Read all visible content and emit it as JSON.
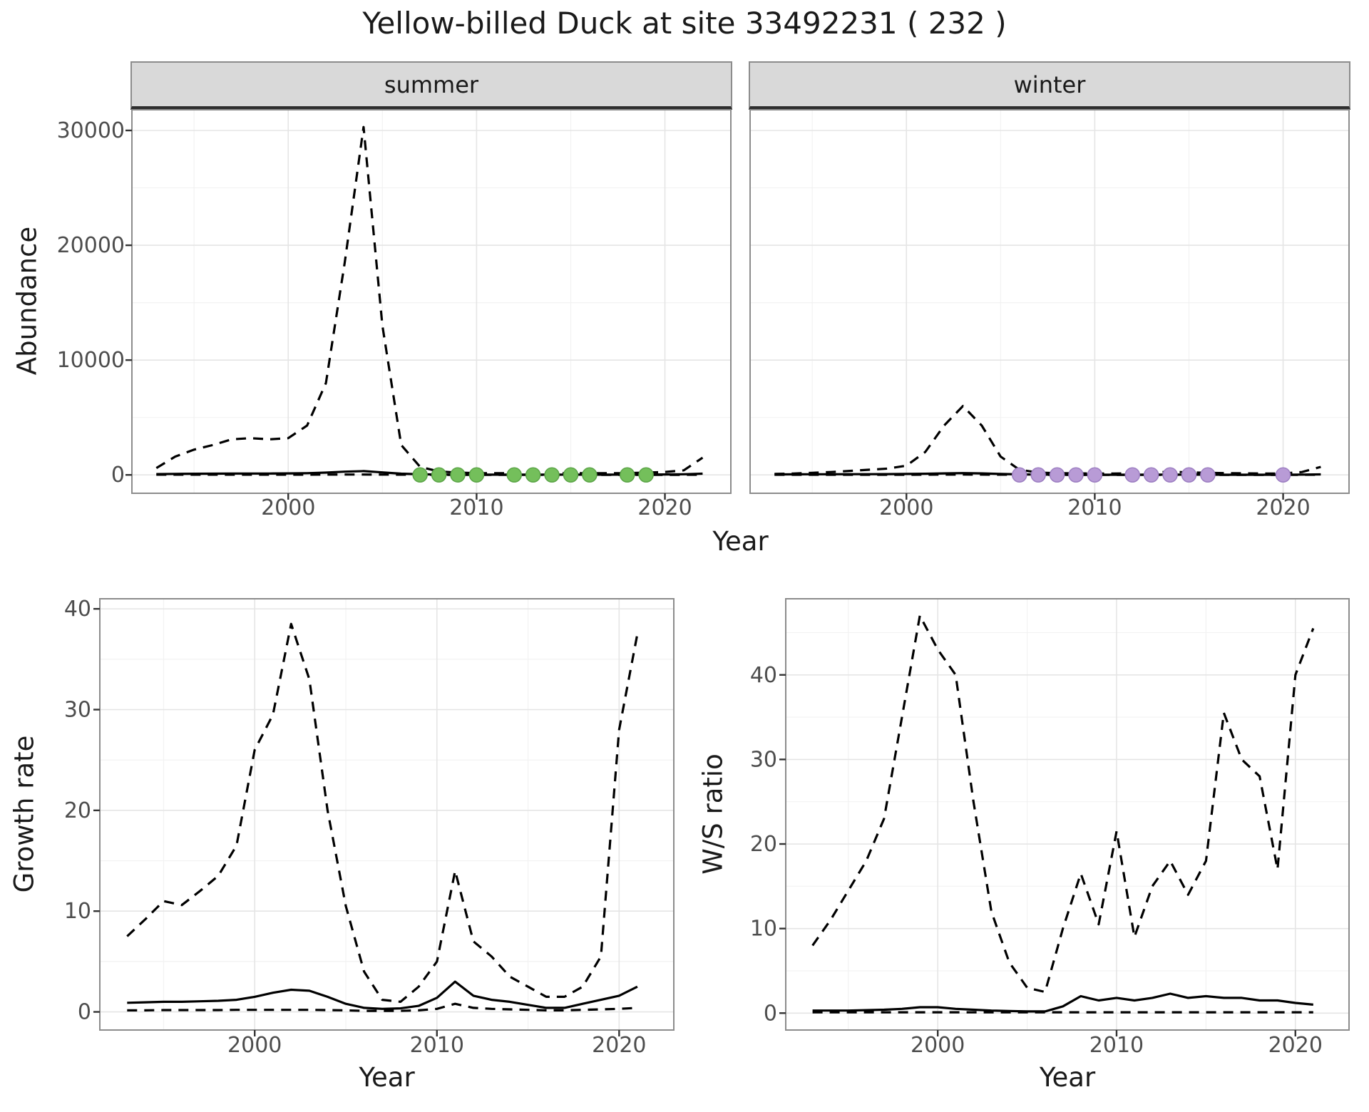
{
  "title": "Yellow-billed Duck at site 33492231 ( 232 )",
  "axis_labels": {
    "abundance": "Abundance",
    "growth_rate": "Growth rate",
    "ws_ratio": "W/S ratio",
    "year": "Year"
  },
  "style": {
    "grid_major": "#e5e5e5",
    "grid_minor": "#f2f2f2",
    "panel_border": "#8c8c8c",
    "strip_bg": "#d9d9d9",
    "line_color": "#000000",
    "tick_text": "#4d4d4d"
  },
  "chart_data": [
    {
      "id": "summer",
      "type": "line",
      "facet_label": "summer",
      "xlabel": "Year",
      "ylabel": "Abundance",
      "xlim": [
        1991.7,
        2023.5
      ],
      "ylim": [
        -1600,
        31800
      ],
      "xticks": [
        2000,
        2010,
        2020
      ],
      "yticks": [
        0,
        10000,
        20000,
        30000
      ],
      "x": [
        1993,
        1994,
        1995,
        1996,
        1997,
        1998,
        1999,
        2000,
        2001,
        2002,
        2003,
        2004,
        2005,
        2006,
        2007,
        2008,
        2009,
        2010,
        2011,
        2012,
        2013,
        2014,
        2015,
        2016,
        2017,
        2018,
        2019,
        2020,
        2021,
        2022
      ],
      "series": [
        {
          "name": "upper-ci",
          "style": "dashed",
          "values": [
            600,
            1600,
            2200,
            2600,
            3100,
            3200,
            3100,
            3200,
            4300,
            8000,
            18500,
            30300,
            13000,
            2600,
            700,
            300,
            200,
            150,
            150,
            150,
            150,
            150,
            150,
            150,
            150,
            150,
            200,
            250,
            400,
            1500
          ]
        },
        {
          "name": "lower-ci",
          "style": "dashed",
          "values": [
            20,
            20,
            20,
            20,
            20,
            20,
            20,
            20,
            20,
            25,
            30,
            35,
            25,
            20,
            10,
            10,
            10,
            10,
            10,
            10,
            10,
            10,
            10,
            10,
            10,
            10,
            10,
            10,
            10,
            15
          ]
        },
        {
          "name": "estimate",
          "style": "solid",
          "values": [
            70,
            90,
            100,
            110,
            120,
            120,
            120,
            130,
            150,
            200,
            280,
            330,
            220,
            110,
            50,
            30,
            25,
            20,
            20,
            20,
            20,
            20,
            20,
            20,
            20,
            25,
            30,
            40,
            60,
            110
          ]
        }
      ],
      "points": {
        "name": "zero-count-point-summer",
        "color": "#74bf5b",
        "stroke": "#5ca548",
        "x": [
          2007,
          2008,
          2009,
          2010,
          2012,
          2013,
          2014,
          2015,
          2016,
          2018,
          2019
        ],
        "y": [
          0,
          0,
          0,
          0,
          0,
          0,
          0,
          0,
          0,
          0,
          0
        ]
      }
    },
    {
      "id": "winter",
      "type": "line",
      "facet_label": "winter",
      "xlabel": "Year",
      "ylabel": "Abundance",
      "xlim": [
        1991.7,
        2023.5
      ],
      "ylim": [
        -1600,
        31800
      ],
      "xticks": [
        2000,
        2010,
        2020
      ],
      "yticks": [
        0,
        10000,
        20000,
        30000
      ],
      "x": [
        1993,
        1994,
        1995,
        1996,
        1997,
        1998,
        1999,
        2000,
        2001,
        2002,
        2003,
        2004,
        2005,
        2006,
        2007,
        2008,
        2009,
        2010,
        2011,
        2012,
        2013,
        2014,
        2015,
        2016,
        2017,
        2018,
        2019,
        2020,
        2021,
        2022
      ],
      "series": [
        {
          "name": "upper-ci",
          "style": "dashed",
          "values": [
            80,
            120,
            180,
            250,
            350,
            450,
            550,
            800,
            2000,
            4300,
            6000,
            4300,
            1600,
            450,
            200,
            150,
            130,
            120,
            120,
            130,
            200,
            280,
            220,
            180,
            150,
            130,
            120,
            120,
            250,
            700
          ]
        },
        {
          "name": "lower-ci",
          "style": "dashed",
          "values": [
            15,
            15,
            15,
            15,
            15,
            15,
            15,
            15,
            20,
            25,
            30,
            25,
            20,
            12,
            10,
            10,
            10,
            10,
            10,
            10,
            10,
            10,
            10,
            10,
            10,
            10,
            10,
            10,
            10,
            12
          ]
        },
        {
          "name": "estimate",
          "style": "solid",
          "values": [
            40,
            50,
            55,
            60,
            65,
            65,
            70,
            80,
            100,
            130,
            160,
            130,
            85,
            45,
            25,
            18,
            15,
            15,
            15,
            15,
            18,
            20,
            20,
            18,
            15,
            15,
            15,
            15,
            25,
            45
          ]
        }
      ],
      "points": {
        "name": "zero-count-point-winter",
        "color": "#b89bd6",
        "stroke": "#9d7fc2",
        "x": [
          2006,
          2007,
          2008,
          2009,
          2010,
          2012,
          2013,
          2014,
          2015,
          2016,
          2020
        ],
        "y": [
          0,
          0,
          0,
          0,
          0,
          0,
          0,
          0,
          0,
          0,
          0
        ]
      }
    },
    {
      "id": "growth",
      "type": "line",
      "facet_label": "",
      "xlabel": "Year",
      "ylabel": "Growth rate",
      "xlim": [
        1991.5,
        2023
      ],
      "ylim": [
        -1.8,
        41
      ],
      "xticks": [
        2000,
        2010,
        2020
      ],
      "yticks": [
        0,
        10,
        20,
        30,
        40
      ],
      "x": [
        1993,
        1994,
        1995,
        1996,
        1997,
        1998,
        1999,
        2000,
        2001,
        2002,
        2003,
        2004,
        2005,
        2006,
        2007,
        2008,
        2009,
        2010,
        2011,
        2012,
        2013,
        2014,
        2015,
        2016,
        2017,
        2018,
        2019,
        2020,
        2021
      ],
      "series": [
        {
          "name": "upper-ci",
          "style": "dashed",
          "values": [
            7.5,
            9.2,
            11.0,
            10.6,
            12.0,
            13.5,
            16.5,
            26.0,
            29.5,
            38.5,
            33.0,
            20.0,
            10.5,
            4.0,
            1.2,
            1.0,
            2.5,
            5.0,
            14.0,
            7.0,
            5.5,
            3.5,
            2.5,
            1.5,
            1.5,
            2.5,
            5.5,
            28.0,
            37.5
          ]
        },
        {
          "name": "lower-ci",
          "style": "dashed",
          "values": [
            0.15,
            0.15,
            0.18,
            0.18,
            0.18,
            0.18,
            0.2,
            0.2,
            0.2,
            0.2,
            0.2,
            0.18,
            0.15,
            0.1,
            0.1,
            0.1,
            0.15,
            0.3,
            0.8,
            0.4,
            0.3,
            0.25,
            0.2,
            0.15,
            0.15,
            0.2,
            0.25,
            0.3,
            0.4
          ]
        },
        {
          "name": "estimate",
          "style": "solid",
          "values": [
            0.9,
            0.95,
            1.0,
            1.0,
            1.05,
            1.1,
            1.2,
            1.5,
            1.9,
            2.2,
            2.1,
            1.5,
            0.8,
            0.4,
            0.3,
            0.35,
            0.6,
            1.4,
            3.0,
            1.6,
            1.2,
            1.0,
            0.7,
            0.4,
            0.4,
            0.8,
            1.2,
            1.6,
            2.5
          ]
        }
      ]
    },
    {
      "id": "ws",
      "type": "line",
      "facet_label": "",
      "xlabel": "Year",
      "ylabel": "W/S ratio",
      "xlim": [
        1991.5,
        2023
      ],
      "ylim": [
        -2,
        49
      ],
      "xticks": [
        2000,
        2010,
        2020
      ],
      "yticks": [
        0,
        10,
        20,
        30,
        40
      ],
      "x": [
        1993,
        1994,
        1995,
        1996,
        1997,
        1998,
        1999,
        2000,
        2001,
        2002,
        2003,
        2004,
        2005,
        2006,
        2007,
        2008,
        2009,
        2010,
        2011,
        2012,
        2013,
        2014,
        2015,
        2016,
        2017,
        2018,
        2019,
        2020,
        2021
      ],
      "series": [
        {
          "name": "upper-ci",
          "style": "dashed",
          "values": [
            8.0,
            11.0,
            14.5,
            18.0,
            23.0,
            35.0,
            47.0,
            43.0,
            40.0,
            25.0,
            12.0,
            6.0,
            3.0,
            2.5,
            10.0,
            16.5,
            10.5,
            21.5,
            9.0,
            15.0,
            18.0,
            14.0,
            18.0,
            35.5,
            30.0,
            28.0,
            17.0,
            40.0,
            45.5
          ]
        },
        {
          "name": "lower-ci",
          "style": "dashed",
          "values": [
            0.1,
            0.1,
            0.1,
            0.1,
            0.1,
            0.1,
            0.1,
            0.1,
            0.1,
            0.1,
            0.1,
            0.1,
            0.1,
            0.1,
            0.1,
            0.1,
            0.1,
            0.1,
            0.1,
            0.1,
            0.1,
            0.1,
            0.1,
            0.1,
            0.1,
            0.1,
            0.1,
            0.1,
            0.1
          ]
        },
        {
          "name": "estimate",
          "style": "solid",
          "values": [
            0.3,
            0.3,
            0.3,
            0.35,
            0.4,
            0.5,
            0.7,
            0.7,
            0.5,
            0.4,
            0.3,
            0.25,
            0.2,
            0.2,
            0.8,
            2.0,
            1.5,
            1.8,
            1.5,
            1.8,
            2.3,
            1.8,
            2.0,
            1.8,
            1.8,
            1.5,
            1.5,
            1.2,
            1.0
          ]
        }
      ]
    }
  ]
}
